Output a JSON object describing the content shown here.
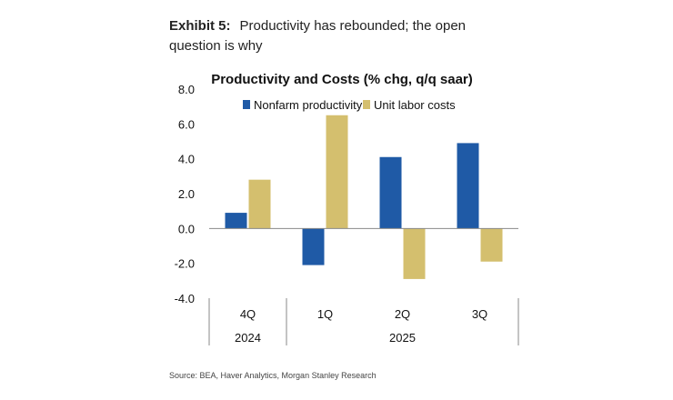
{
  "exhibit": {
    "label": "Exhibit 5:",
    "title": "Productivity has rebounded; the open question is why"
  },
  "source": "Source: BEA, Haver Analytics, Morgan Stanley Research",
  "colors": {
    "productivity": "#1F5AA6",
    "labor_costs": "#D4BF6E",
    "axis": "#888888",
    "text": "#111111"
  },
  "chart_data": {
    "type": "bar",
    "title": "Productivity and Costs (% chg, q/q saar)",
    "categories": [
      "4Q",
      "1Q",
      "2Q",
      "3Q"
    ],
    "category_groups": [
      {
        "label": "2024",
        "categories": [
          "4Q"
        ]
      },
      {
        "label": "2025",
        "categories": [
          "1Q",
          "2Q",
          "3Q"
        ]
      }
    ],
    "series": [
      {
        "name": "Nonfarm productivity",
        "values": [
          0.9,
          -2.1,
          4.1,
          4.9
        ]
      },
      {
        "name": "Unit labor costs",
        "values": [
          2.8,
          6.5,
          -2.9,
          -1.9
        ]
      }
    ],
    "yticks": [
      "8.0",
      "6.0",
      "4.0",
      "2.0",
      "0.0",
      "-2.0",
      "-4.0"
    ],
    "ylim": [
      -4,
      8
    ],
    "xlabel": "",
    "ylabel": "",
    "legend": "top",
    "grid": false
  }
}
